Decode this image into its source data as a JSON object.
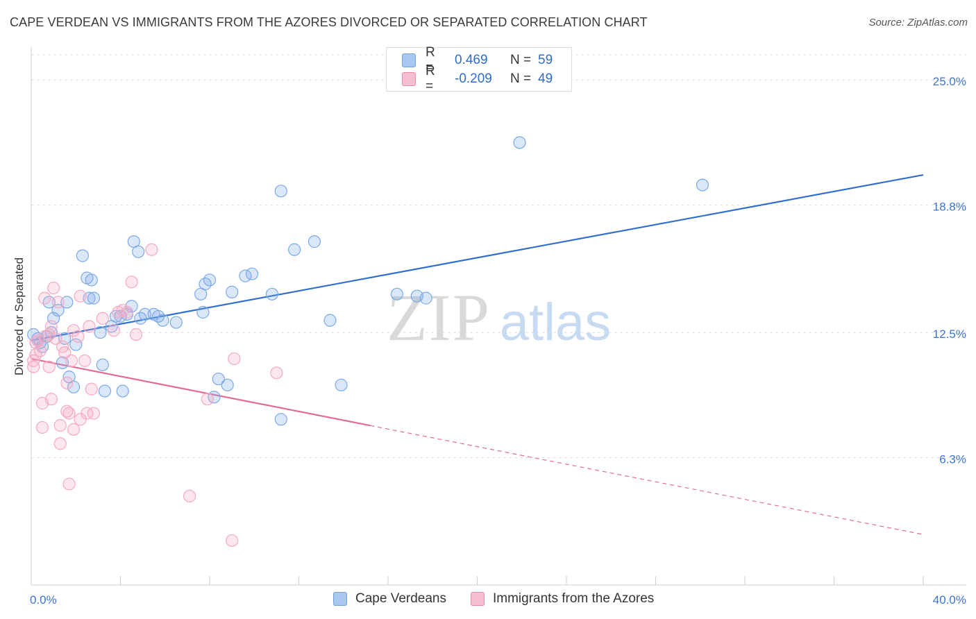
{
  "header": {
    "title": "CAPE VERDEAN VS IMMIGRANTS FROM THE AZORES DIVORCED OR SEPARATED CORRELATION CHART",
    "source": "Source: ZipAtlas.com"
  },
  "legend": {
    "r_label": "R =",
    "n_label": "N =",
    "rows": [
      {
        "r": "0.469",
        "n": "59",
        "color": "#a9c8f0",
        "border": "#6f9fdc"
      },
      {
        "r": "-0.209",
        "n": "49",
        "color": "#f6bfd1",
        "border": "#e48aa9"
      }
    ]
  },
  "watermark": {
    "zip": "ZIP",
    "atlas": "atlas"
  },
  "chart_data": {
    "type": "scatter",
    "title": "CAPE VERDEAN VS IMMIGRANTS FROM THE AZORES DIVORCED OR SEPARATED CORRELATION CHART",
    "xlabel": "",
    "ylabel": "Divorced or Separated",
    "xlim": [
      0,
      40
    ],
    "ylim": [
      0,
      27
    ],
    "x_tick_labels": [
      "0.0%",
      "40.0%"
    ],
    "y_ticks": [
      6.3,
      12.5,
      18.8,
      25.0
    ],
    "y_tick_labels": [
      "6.3%",
      "12.5%",
      "18.8%",
      "25.0%"
    ],
    "grid": true,
    "legend_position": "top-center",
    "series": [
      {
        "name": "Cape Verdeans",
        "color": "#7aa9e6",
        "line_color": "#2f6fcf",
        "trend": {
          "x": [
            0,
            40
          ],
          "y": [
            12.1,
            20.3
          ],
          "dashed_from": null
        },
        "points": [
          [
            0.1,
            12.4
          ],
          [
            0.3,
            12.2
          ],
          [
            0.4,
            12.0
          ],
          [
            0.5,
            11.8
          ],
          [
            0.7,
            12.3
          ],
          [
            0.8,
            14.0
          ],
          [
            0.9,
            12.5
          ],
          [
            1.0,
            13.2
          ],
          [
            1.2,
            13.6
          ],
          [
            1.4,
            11.0
          ],
          [
            1.6,
            14.0
          ],
          [
            1.7,
            10.3
          ],
          [
            1.9,
            9.8
          ],
          [
            2.0,
            11.9
          ],
          [
            2.3,
            16.3
          ],
          [
            2.5,
            15.2
          ],
          [
            2.6,
            14.2
          ],
          [
            2.7,
            15.1
          ],
          [
            2.8,
            14.2
          ],
          [
            3.1,
            12.5
          ],
          [
            3.2,
            10.9
          ],
          [
            3.3,
            9.6
          ],
          [
            3.6,
            12.8
          ],
          [
            3.8,
            13.3
          ],
          [
            4.0,
            13.3
          ],
          [
            4.1,
            9.6
          ],
          [
            4.3,
            13.4
          ],
          [
            4.5,
            13.8
          ],
          [
            4.6,
            17.0
          ],
          [
            4.8,
            16.5
          ],
          [
            4.9,
            13.2
          ],
          [
            5.1,
            13.4
          ],
          [
            5.5,
            13.4
          ],
          [
            5.7,
            13.3
          ],
          [
            5.9,
            13.1
          ],
          [
            6.5,
            13.0
          ],
          [
            7.6,
            14.4
          ],
          [
            7.7,
            13.5
          ],
          [
            7.8,
            14.9
          ],
          [
            8.0,
            15.1
          ],
          [
            8.2,
            9.3
          ],
          [
            8.4,
            10.2
          ],
          [
            8.8,
            9.9
          ],
          [
            9.0,
            14.5
          ],
          [
            9.6,
            15.3
          ],
          [
            9.9,
            15.4
          ],
          [
            10.8,
            14.4
          ],
          [
            11.2,
            8.2
          ],
          [
            11.2,
            19.5
          ],
          [
            11.8,
            16.6
          ],
          [
            12.7,
            17.0
          ],
          [
            13.4,
            13.1
          ],
          [
            13.9,
            9.9
          ],
          [
            16.4,
            14.4
          ],
          [
            17.3,
            14.3
          ],
          [
            17.7,
            14.2
          ],
          [
            21.9,
            21.9
          ],
          [
            30.1,
            19.8
          ],
          [
            1.5,
            12.2
          ]
        ]
      },
      {
        "name": "Immigrants from the Azores",
        "color": "#f3a9c2",
        "line_color": "#e06b98",
        "trend": {
          "x": [
            0,
            40
          ],
          "y": [
            11.2,
            2.5
          ],
          "dashed_from": 15.2
        },
        "points": [
          [
            0.1,
            10.8
          ],
          [
            0.1,
            11.1
          ],
          [
            0.2,
            11.4
          ],
          [
            0.3,
            12.1
          ],
          [
            0.4,
            11.6
          ],
          [
            0.5,
            9.0
          ],
          [
            0.5,
            7.8
          ],
          [
            0.6,
            12.3
          ],
          [
            0.6,
            14.2
          ],
          [
            0.8,
            12.4
          ],
          [
            0.8,
            10.8
          ],
          [
            0.9,
            9.2
          ],
          [
            0.9,
            12.8
          ],
          [
            1.0,
            14.7
          ],
          [
            1.1,
            12.2
          ],
          [
            1.2,
            14.0
          ],
          [
            1.3,
            7.0
          ],
          [
            1.3,
            7.9
          ],
          [
            1.4,
            11.8
          ],
          [
            1.5,
            11.5
          ],
          [
            1.6,
            8.6
          ],
          [
            1.6,
            10.0
          ],
          [
            1.7,
            8.5
          ],
          [
            1.7,
            5.0
          ],
          [
            1.8,
            11.1
          ],
          [
            1.9,
            12.6
          ],
          [
            1.9,
            7.7
          ],
          [
            2.1,
            12.3
          ],
          [
            2.2,
            14.3
          ],
          [
            2.2,
            8.2
          ],
          [
            2.4,
            11.1
          ],
          [
            2.5,
            8.5
          ],
          [
            2.6,
            12.8
          ],
          [
            2.7,
            9.7
          ],
          [
            2.8,
            8.5
          ],
          [
            3.2,
            13.2
          ],
          [
            3.7,
            12.6
          ],
          [
            3.9,
            13.5
          ],
          [
            4.1,
            13.6
          ],
          [
            4.3,
            13.5
          ],
          [
            4.5,
            15.0
          ],
          [
            4.7,
            12.4
          ],
          [
            5.4,
            16.6
          ],
          [
            7.1,
            4.4
          ],
          [
            7.9,
            9.2
          ],
          [
            9.0,
            2.2
          ],
          [
            9.1,
            11.2
          ],
          [
            11.0,
            10.5
          ],
          [
            0.2,
            12.0
          ]
        ]
      }
    ]
  },
  "bottom_legend": {
    "items": [
      {
        "label": "Cape Verdeans",
        "color": "#a9c8f0",
        "border": "#6f9fdc"
      },
      {
        "label": "Immigrants from the Azores",
        "color": "#f6bfd1",
        "border": "#e48aa9"
      }
    ]
  }
}
